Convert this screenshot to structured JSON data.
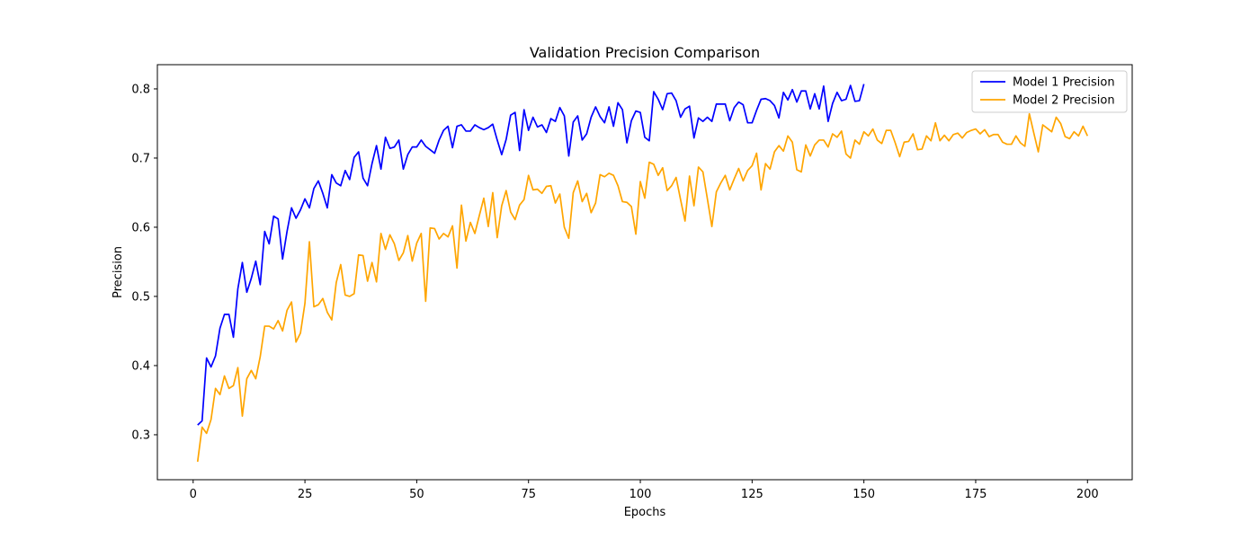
{
  "chart_data": {
    "type": "line",
    "title": "Validation Precision Comparison",
    "xlabel": "Epochs",
    "ylabel": "Precision",
    "xlim": [
      -8,
      210
    ],
    "ylim": [
      0.235,
      0.835
    ],
    "xticks": [
      0,
      25,
      50,
      75,
      100,
      125,
      150,
      175,
      200
    ],
    "yticks": [
      0.3,
      0.4,
      0.5,
      0.6,
      0.7,
      0.8
    ],
    "grid": false,
    "legend_position": "top-right",
    "series": [
      {
        "name": "Model 1 Precision",
        "color": "#0000ff",
        "x_start": 1,
        "values": [
          0.314,
          0.32,
          0.411,
          0.398,
          0.414,
          0.454,
          0.474,
          0.474,
          0.441,
          0.511,
          0.549,
          0.506,
          0.526,
          0.551,
          0.517,
          0.594,
          0.576,
          0.616,
          0.612,
          0.554,
          0.594,
          0.628,
          0.613,
          0.625,
          0.641,
          0.628,
          0.656,
          0.667,
          0.649,
          0.628,
          0.676,
          0.664,
          0.66,
          0.682,
          0.669,
          0.701,
          0.709,
          0.671,
          0.66,
          0.692,
          0.718,
          0.684,
          0.73,
          0.714,
          0.716,
          0.726,
          0.684,
          0.705,
          0.716,
          0.716,
          0.726,
          0.717,
          0.712,
          0.707,
          0.726,
          0.74,
          0.746,
          0.715,
          0.746,
          0.748,
          0.739,
          0.739,
          0.748,
          0.744,
          0.741,
          0.744,
          0.749,
          0.726,
          0.705,
          0.727,
          0.762,
          0.766,
          0.711,
          0.77,
          0.74,
          0.759,
          0.745,
          0.748,
          0.737,
          0.757,
          0.753,
          0.773,
          0.761,
          0.703,
          0.752,
          0.761,
          0.726,
          0.735,
          0.759,
          0.774,
          0.76,
          0.751,
          0.774,
          0.746,
          0.78,
          0.77,
          0.722,
          0.754,
          0.768,
          0.766,
          0.73,
          0.725,
          0.796,
          0.785,
          0.77,
          0.793,
          0.794,
          0.783,
          0.759,
          0.771,
          0.775,
          0.729,
          0.758,
          0.753,
          0.759,
          0.753,
          0.778,
          0.778,
          0.778,
          0.754,
          0.773,
          0.781,
          0.777,
          0.751,
          0.751,
          0.769,
          0.785,
          0.786,
          0.783,
          0.776,
          0.758,
          0.795,
          0.784,
          0.799,
          0.781,
          0.797,
          0.797,
          0.771,
          0.793,
          0.771,
          0.804,
          0.753,
          0.779,
          0.795,
          0.783,
          0.785,
          0.805,
          0.782,
          0.783,
          0.807
        ]
      },
      {
        "name": "Model 2 Precision",
        "color": "#ffa500",
        "x_start": 1,
        "values": [
          0.261,
          0.311,
          0.302,
          0.322,
          0.367,
          0.358,
          0.385,
          0.367,
          0.371,
          0.397,
          0.327,
          0.381,
          0.393,
          0.381,
          0.413,
          0.457,
          0.457,
          0.453,
          0.465,
          0.45,
          0.48,
          0.492,
          0.434,
          0.447,
          0.49,
          0.579,
          0.485,
          0.488,
          0.497,
          0.477,
          0.466,
          0.52,
          0.546,
          0.502,
          0.5,
          0.504,
          0.56,
          0.559,
          0.522,
          0.549,
          0.521,
          0.591,
          0.568,
          0.589,
          0.576,
          0.552,
          0.563,
          0.588,
          0.551,
          0.577,
          0.591,
          0.493,
          0.599,
          0.598,
          0.583,
          0.591,
          0.586,
          0.602,
          0.541,
          0.632,
          0.58,
          0.607,
          0.591,
          0.617,
          0.642,
          0.601,
          0.65,
          0.585,
          0.631,
          0.653,
          0.622,
          0.611,
          0.632,
          0.64,
          0.675,
          0.654,
          0.655,
          0.649,
          0.659,
          0.66,
          0.635,
          0.648,
          0.6,
          0.584,
          0.65,
          0.667,
          0.637,
          0.649,
          0.621,
          0.635,
          0.676,
          0.673,
          0.678,
          0.675,
          0.66,
          0.637,
          0.636,
          0.63,
          0.59,
          0.666,
          0.642,
          0.694,
          0.691,
          0.675,
          0.686,
          0.653,
          0.66,
          0.672,
          0.64,
          0.609,
          0.674,
          0.631,
          0.687,
          0.68,
          0.641,
          0.601,
          0.651,
          0.664,
          0.675,
          0.654,
          0.67,
          0.685,
          0.667,
          0.682,
          0.689,
          0.707,
          0.654,
          0.692,
          0.684,
          0.709,
          0.718,
          0.71,
          0.732,
          0.723,
          0.683,
          0.68,
          0.719,
          0.703,
          0.719,
          0.726,
          0.726,
          0.716,
          0.735,
          0.73,
          0.739,
          0.706,
          0.7,
          0.726,
          0.72,
          0.738,
          0.732,
          0.742,
          0.726,
          0.721,
          0.74,
          0.74,
          0.722,
          0.702,
          0.723,
          0.724,
          0.735,
          0.712,
          0.713,
          0.732,
          0.725,
          0.751,
          0.725,
          0.733,
          0.725,
          0.734,
          0.736,
          0.729,
          0.737,
          0.74,
          0.742,
          0.735,
          0.741,
          0.731,
          0.734,
          0.734,
          0.723,
          0.72,
          0.72,
          0.732,
          0.722,
          0.717,
          0.764,
          0.736,
          0.709,
          0.748,
          0.743,
          0.738,
          0.759,
          0.75,
          0.731,
          0.728,
          0.738,
          0.732,
          0.746,
          0.732
        ]
      }
    ]
  }
}
